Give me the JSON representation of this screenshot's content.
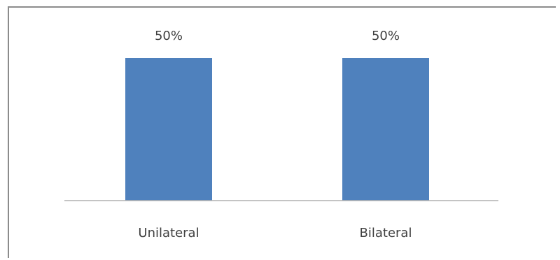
{
  "chart_data": {
    "type": "bar",
    "categories": [
      "Unilateral",
      "Bilateral"
    ],
    "values": [
      50,
      50
    ],
    "data_labels": [
      "50%",
      "50%"
    ],
    "title": "",
    "xlabel": "",
    "ylabel": "",
    "ylim": [
      0,
      50
    ],
    "grid": false,
    "legend": "none",
    "bar_color": "#4f81bd",
    "axis_color": "#b0b0b0",
    "text_color": "#404040"
  }
}
